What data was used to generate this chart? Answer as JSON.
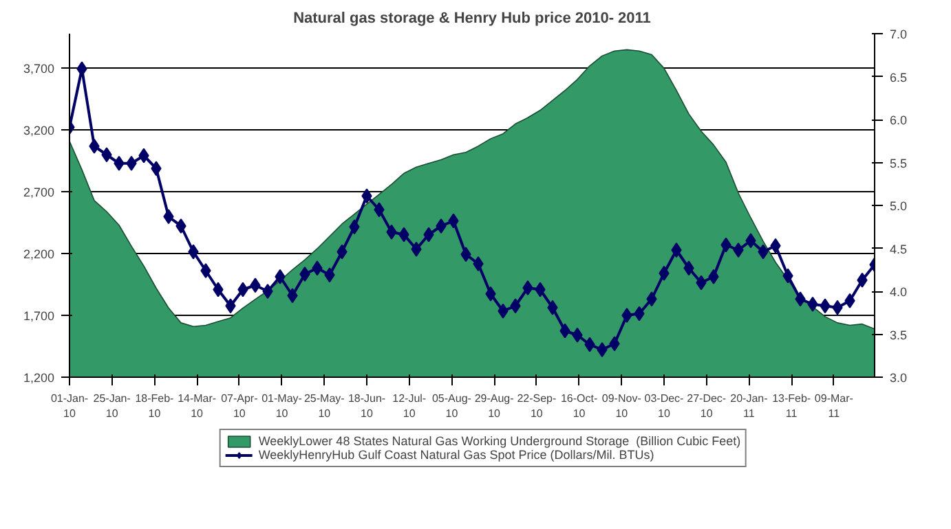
{
  "chart_data": {
    "type": "area",
    "title": "Natural gas storage & Henry Hub price 2010- 2011",
    "x": [
      "2010-01-01",
      "2010-01-08",
      "2010-01-15",
      "2010-01-22",
      "2010-01-29",
      "2010-02-05",
      "2010-02-12",
      "2010-02-19",
      "2010-02-26",
      "2010-03-05",
      "2010-03-12",
      "2010-03-19",
      "2010-03-26",
      "2010-04-02",
      "2010-04-09",
      "2010-04-16",
      "2010-04-23",
      "2010-04-30",
      "2010-05-07",
      "2010-05-14",
      "2010-05-21",
      "2010-05-28",
      "2010-06-04",
      "2010-06-11",
      "2010-06-18",
      "2010-06-25",
      "2010-07-02",
      "2010-07-09",
      "2010-07-16",
      "2010-07-23",
      "2010-07-30",
      "2010-08-06",
      "2010-08-13",
      "2010-08-20",
      "2010-08-27",
      "2010-09-03",
      "2010-09-10",
      "2010-09-17",
      "2010-09-24",
      "2010-10-01",
      "2010-10-08",
      "2010-10-15",
      "2010-10-22",
      "2010-10-29",
      "2010-11-05",
      "2010-11-12",
      "2010-11-19",
      "2010-11-26",
      "2010-12-03",
      "2010-12-10",
      "2010-12-17",
      "2010-12-24",
      "2010-12-31",
      "2011-01-07",
      "2011-01-14",
      "2011-01-21",
      "2011-01-28",
      "2011-02-04",
      "2011-02-11",
      "2011-02-18",
      "2011-02-25",
      "2011-03-04",
      "2011-03-11",
      "2011-03-18",
      "2011-03-25",
      "2011-04-01"
    ],
    "series": [
      {
        "name": "WeeklyLower 48 States Natural Gas Working Underground Storage  (Billion Cubic Feet)",
        "type": "area",
        "color": "#339966",
        "axis": "y",
        "values": [
          3110,
          2880,
          2630,
          2540,
          2430,
          2260,
          2100,
          1920,
          1760,
          1640,
          1610,
          1620,
          1650,
          1680,
          1760,
          1830,
          1900,
          1980,
          2070,
          2150,
          2240,
          2340,
          2440,
          2520,
          2600,
          2680,
          2760,
          2850,
          2900,
          2930,
          2960,
          3000,
          3020,
          3070,
          3130,
          3170,
          3250,
          3300,
          3360,
          3440,
          3520,
          3610,
          3720,
          3800,
          3840,
          3850,
          3840,
          3810,
          3700,
          3520,
          3330,
          3190,
          3080,
          2940,
          2690,
          2490,
          2300,
          2130,
          1990,
          1850,
          1770,
          1690,
          1640,
          1620,
          1630,
          1590
        ]
      },
      {
        "name": "WeeklyHenryHub Gulf Coast Natural Gas Spot Price (Dollars/Mil. BTUs)",
        "type": "line",
        "color": "#000066",
        "axis": "y2",
        "marker": "diamond",
        "values": [
          5.91,
          6.59,
          5.69,
          5.59,
          5.49,
          5.49,
          5.58,
          5.43,
          4.87,
          4.76,
          4.46,
          4.24,
          4.02,
          3.83,
          4.02,
          4.07,
          4.0,
          4.17,
          3.95,
          4.2,
          4.27,
          4.19,
          4.46,
          4.75,
          5.11,
          4.95,
          4.69,
          4.66,
          4.49,
          4.66,
          4.76,
          4.82,
          4.43,
          4.32,
          3.97,
          3.77,
          3.83,
          4.04,
          4.02,
          3.81,
          3.54,
          3.49,
          3.38,
          3.32,
          3.39,
          3.72,
          3.74,
          3.91,
          4.21,
          4.48,
          4.27,
          4.1,
          4.17,
          4.54,
          4.48,
          4.59,
          4.46,
          4.53,
          4.18,
          3.91,
          3.85,
          3.83,
          3.81,
          3.89,
          4.13,
          4.31
        ]
      }
    ],
    "xlim": [
      "2010-01-01",
      "2011-04-01"
    ],
    "xticks": [
      {
        "value": "2010-01-01",
        "label": "01-Jan-10"
      },
      {
        "value": "2010-01-25",
        "label": "25-Jan-10"
      },
      {
        "value": "2010-02-18",
        "label": "18-Feb-10"
      },
      {
        "value": "2010-03-14",
        "label": "14-Mar-10"
      },
      {
        "value": "2010-04-07",
        "label": "07-Apr-10"
      },
      {
        "value": "2010-05-01",
        "label": "01-May-10"
      },
      {
        "value": "2010-05-25",
        "label": "25-May-10"
      },
      {
        "value": "2010-06-18",
        "label": "18-Jun-10"
      },
      {
        "value": "2010-07-12",
        "label": "12-Jul-10"
      },
      {
        "value": "2010-08-05",
        "label": "05-Aug-10"
      },
      {
        "value": "2010-08-29",
        "label": "29-Aug-10"
      },
      {
        "value": "2010-09-22",
        "label": "22-Sep-10"
      },
      {
        "value": "2010-10-16",
        "label": "16-Oct-10"
      },
      {
        "value": "2010-11-09",
        "label": "09-Nov-10"
      },
      {
        "value": "2010-12-03",
        "label": "03-Dec-10"
      },
      {
        "value": "2010-12-27",
        "label": "27-Dec-10"
      },
      {
        "value": "2011-01-20",
        "label": "20-Jan-11"
      },
      {
        "value": "2011-02-13",
        "label": "13-Feb-11"
      },
      {
        "value": "2011-03-09",
        "label": "09-Mar-11"
      }
    ],
    "ylim": [
      1200,
      3980
    ],
    "yticks": [
      {
        "value": 1200,
        "label": "1,200"
      },
      {
        "value": 1700,
        "label": "1,700"
      },
      {
        "value": 2200,
        "label": "2,200"
      },
      {
        "value": 2700,
        "label": "2,700"
      },
      {
        "value": 3200,
        "label": "3,200"
      },
      {
        "value": 3700,
        "label": "3,700"
      }
    ],
    "y2lim": [
      3,
      7
    ],
    "y2ticks": [
      {
        "value": 3,
        "label": "3.0"
      },
      {
        "value": 3.5,
        "label": "3.5"
      },
      {
        "value": 4,
        "label": "4.0"
      },
      {
        "value": 4.5,
        "label": "4.5"
      },
      {
        "value": 5,
        "label": "5.0"
      },
      {
        "value": 5.5,
        "label": "5.5"
      },
      {
        "value": 6,
        "label": "6.0"
      },
      {
        "value": 6.5,
        "label": "6.5"
      },
      {
        "value": 7,
        "label": "7.0"
      }
    ],
    "grid": "y",
    "legend": "bottom"
  }
}
